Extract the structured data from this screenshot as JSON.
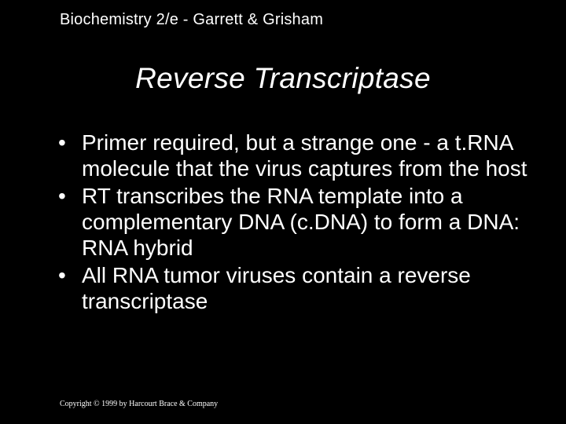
{
  "colors": {
    "background": "#000000",
    "text": "#ffffff"
  },
  "typography": {
    "header_fontsize": 20,
    "title_fontsize": 37,
    "bullet_fontsize": 28,
    "footer_fontsize": 10,
    "title_style": "italic",
    "body_family": "Arial",
    "footer_family": "Times New Roman"
  },
  "header": {
    "text": "Biochemistry 2/e - Garrett & Grisham"
  },
  "title": {
    "text": "Reverse Transcriptase"
  },
  "bullets": {
    "marker": "•",
    "items": [
      {
        "text": "Primer required, but a strange one - a t.RNA molecule that the virus captures from the host"
      },
      {
        "text": "RT transcribes the RNA template into a complementary DNA (c.DNA) to form a DNA: RNA hybrid"
      },
      {
        "text": "All RNA tumor viruses contain a reverse transcriptase"
      }
    ]
  },
  "footer": {
    "text": "Copyright © 1999 by Harcourt Brace & Company"
  }
}
